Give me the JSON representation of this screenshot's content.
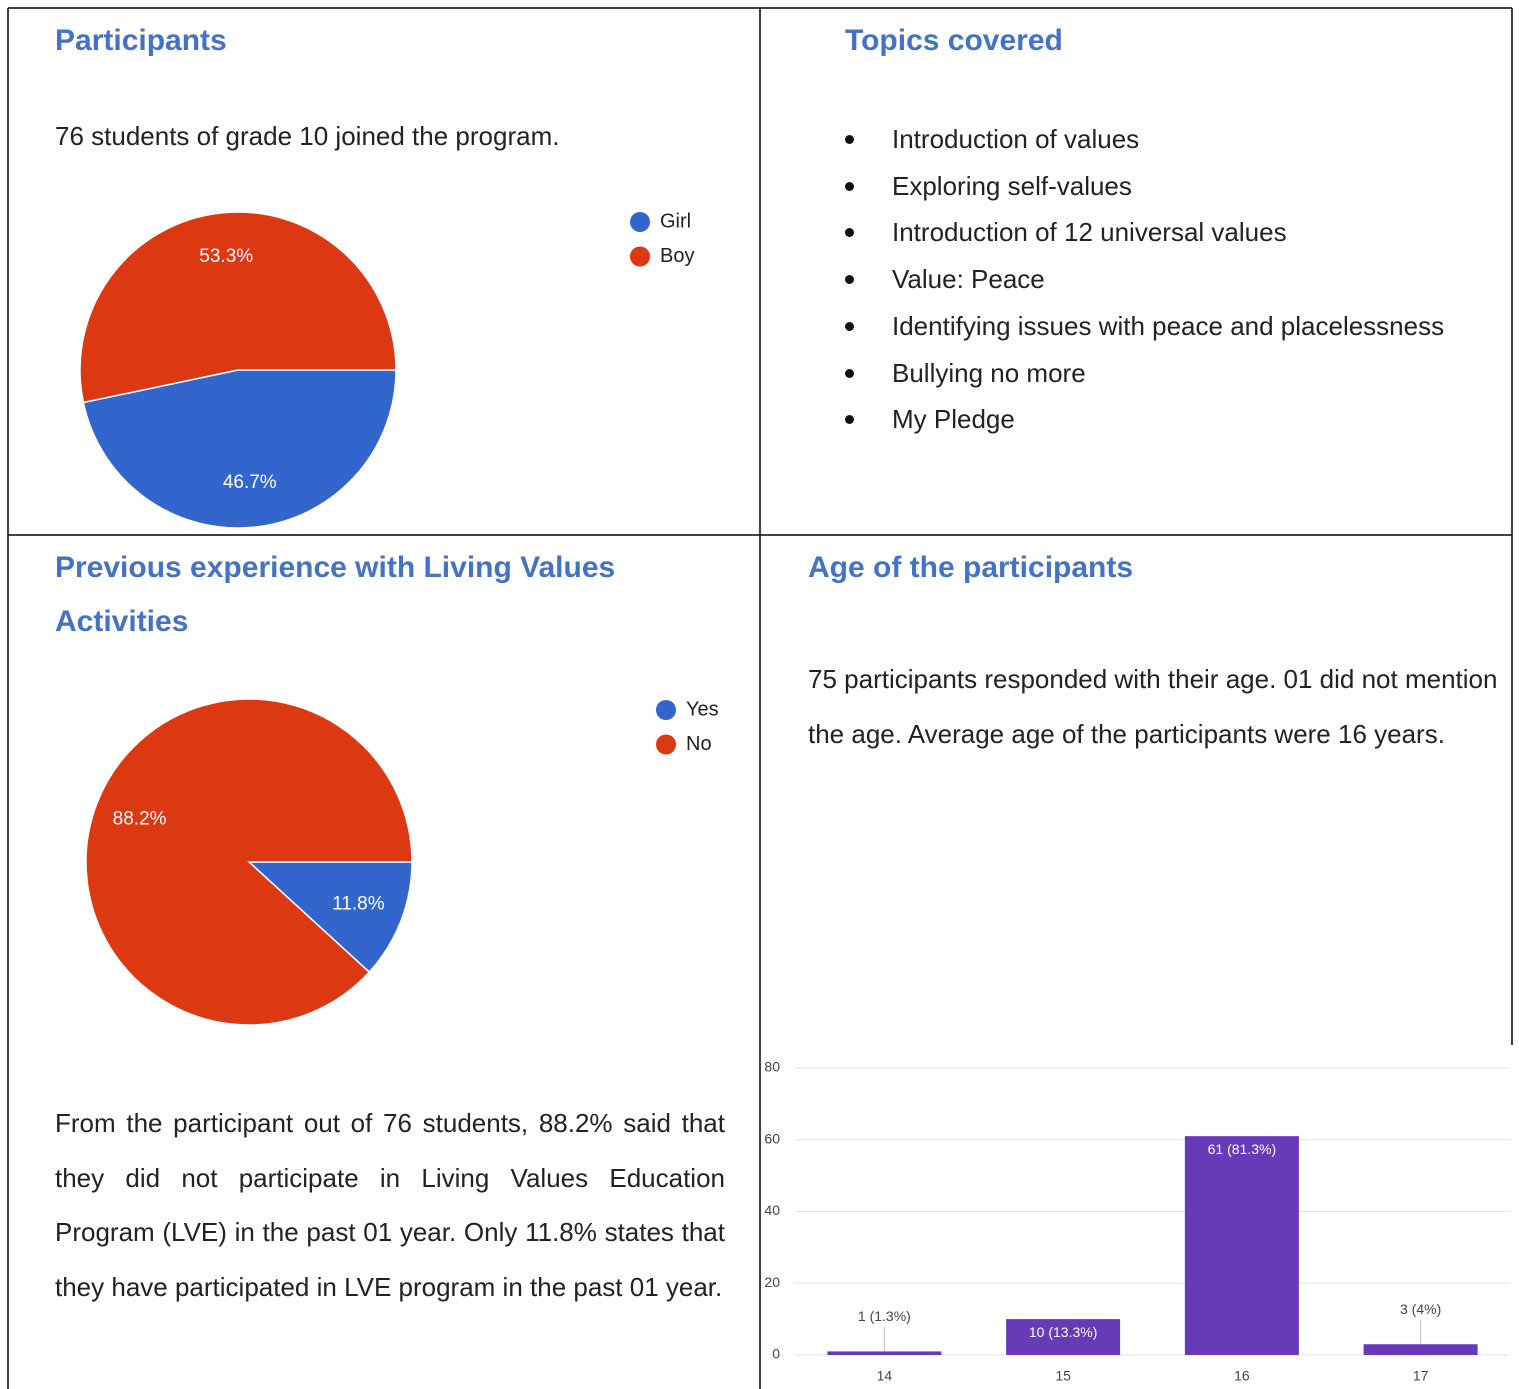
{
  "participants": {
    "title": "Participants",
    "text": "76 students of grade 10 joined the program.",
    "chart": {
      "type": "pie",
      "categories": [
        "Girl",
        "Boy"
      ],
      "values": [
        46.7,
        53.3
      ],
      "value_labels": [
        "46.7%",
        "53.3%"
      ],
      "colors": [
        "#3366cc",
        "#dc3912"
      ]
    }
  },
  "topics": {
    "title": "Topics covered",
    "items": [
      "Introduction of values",
      "Exploring self-values",
      "Introduction of 12 universal values",
      "Value: Peace",
      "Identifying issues with peace and placelessness",
      "Bullying no more",
      "My Pledge"
    ]
  },
  "experience": {
    "title": "Previous experience with Living Values Activities",
    "chart": {
      "type": "pie",
      "categories": [
        "Yes",
        "No"
      ],
      "values": [
        11.8,
        88.2
      ],
      "value_labels": [
        "11.8%",
        "88.2%"
      ],
      "colors": [
        "#3366cc",
        "#dc3912"
      ]
    },
    "text": "From the participant out of 76 students, 88.2% said that they did not participate in Living Values Education Program (LVE) in the past 01 year. Only 11.8% states that they have participated in LVE program in the past 01 year."
  },
  "age": {
    "title": "Age of the participants",
    "text": "75 participants responded with their age. 01 did not mention the age. Average age of the participants were 16 years.",
    "chart": {
      "type": "bar",
      "categories": [
        "14",
        "15",
        "16",
        "17"
      ],
      "values": [
        1,
        10,
        61,
        3
      ],
      "value_labels": [
        "1 (1.3%)",
        "10 (13.3%)",
        "61 (81.3%)",
        "3 (4%)"
      ],
      "color": "#673ab7",
      "ylim": [
        0,
        80
      ],
      "yticks": [
        0,
        20,
        40,
        60,
        80
      ],
      "grid": true
    }
  }
}
